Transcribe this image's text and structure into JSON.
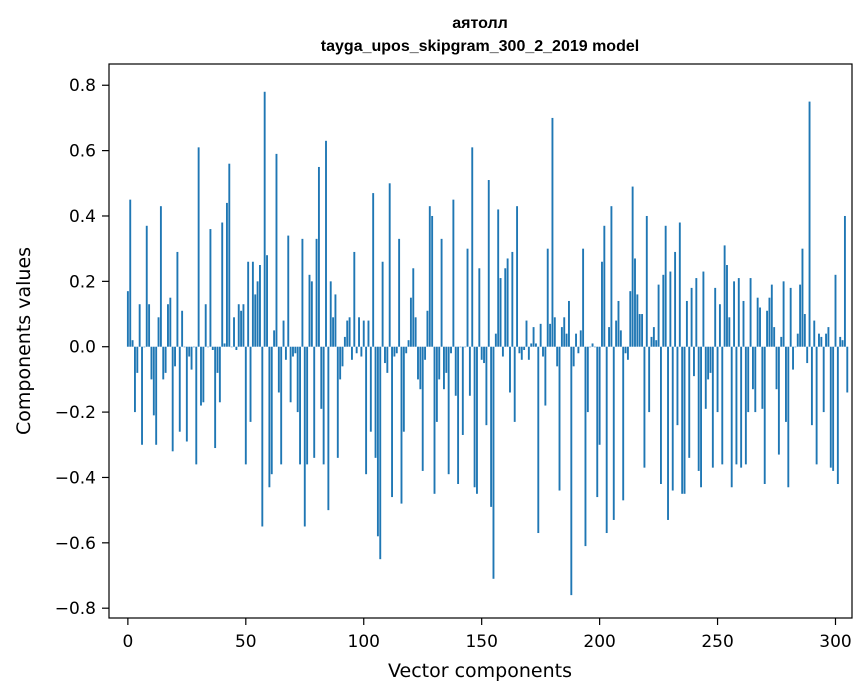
{
  "chart_data": {
    "type": "bar",
    "title_line1": "аятолл",
    "title_line2": "tayga_upos_skipgram_300_2_2019 model",
    "xlabel": "Vector components",
    "ylabel": "Components values",
    "xlim": [
      -8,
      307
    ],
    "ylim": [
      -0.83,
      0.865
    ],
    "xticks": [
      0,
      50,
      100,
      150,
      200,
      250,
      300
    ],
    "yticks": [
      -0.8,
      -0.6,
      -0.4,
      -0.2,
      0.0,
      0.2,
      0.4,
      0.6,
      0.8
    ],
    "ytick_labels": [
      "−0.8",
      "−0.6",
      "−0.4",
      "−0.2",
      "0.0",
      "0.2",
      "0.4",
      "0.6",
      "0.8"
    ],
    "grid": false,
    "bar_color": "#1f77b4",
    "values": [
      0.17,
      0.45,
      0.02,
      -0.2,
      -0.08,
      0.13,
      -0.3,
      0.0,
      0.37,
      0.13,
      -0.1,
      -0.21,
      -0.3,
      0.09,
      0.43,
      -0.1,
      -0.08,
      0.13,
      0.15,
      -0.32,
      -0.06,
      0.29,
      -0.26,
      0.11,
      0.0,
      -0.29,
      -0.03,
      -0.07,
      0.0,
      -0.36,
      0.61,
      -0.18,
      -0.17,
      0.13,
      0.0,
      0.36,
      -0.01,
      -0.31,
      -0.08,
      -0.17,
      0.38,
      0.01,
      0.44,
      0.56,
      0.0,
      0.09,
      -0.01,
      0.13,
      0.11,
      0.13,
      -0.36,
      0.26,
      -0.23,
      0.26,
      0.16,
      0.2,
      0.25,
      -0.55,
      0.78,
      0.28,
      -0.43,
      -0.39,
      0.05,
      0.59,
      -0.14,
      -0.36,
      0.08,
      -0.04,
      0.34,
      -0.17,
      -0.03,
      -0.02,
      -0.2,
      -0.36,
      0.33,
      -0.55,
      -0.36,
      0.22,
      0.2,
      -0.34,
      0.33,
      0.55,
      -0.19,
      -0.36,
      0.63,
      -0.5,
      0.2,
      0.09,
      0.16,
      -0.34,
      -0.1,
      -0.06,
      0.03,
      0.08,
      0.09,
      -0.04,
      0.29,
      -0.02,
      0.09,
      -0.03,
      0.08,
      -0.39,
      0.08,
      -0.26,
      0.47,
      -0.34,
      -0.58,
      -0.65,
      0.26,
      -0.05,
      -0.08,
      0.5,
      -0.46,
      -0.03,
      -0.02,
      0.33,
      -0.48,
      -0.26,
      -0.02,
      0.02,
      0.15,
      0.24,
      0.09,
      -0.1,
      -0.13,
      -0.38,
      -0.04,
      0.11,
      0.43,
      0.4,
      -0.45,
      -0.23,
      -0.1,
      0.33,
      -0.13,
      -0.08,
      -0.39,
      -0.02,
      0.45,
      -0.15,
      -0.42,
      0.0,
      -0.27,
      0.0,
      0.3,
      -0.15,
      0.61,
      -0.43,
      -0.45,
      0.24,
      -0.04,
      -0.05,
      -0.24,
      0.51,
      -0.49,
      -0.71,
      0.04,
      0.42,
      0.21,
      -0.03,
      0.24,
      0.27,
      -0.14,
      0.29,
      -0.23,
      0.43,
      -0.02,
      -0.04,
      -0.01,
      0.08,
      -0.04,
      0.01,
      0.06,
      0.01,
      -0.57,
      0.07,
      -0.03,
      -0.18,
      0.3,
      0.07,
      0.7,
      0.09,
      -0.06,
      -0.44,
      0.06,
      0.09,
      0.04,
      0.14,
      -0.76,
      -0.06,
      0.04,
      -0.02,
      0.05,
      0.3,
      -0.61,
      -0.2,
      0.0,
      0.01,
      0.0,
      -0.46,
      -0.3,
      0.26,
      0.37,
      -0.57,
      0.06,
      0.43,
      -0.53,
      0.08,
      0.14,
      0.05,
      -0.47,
      -0.02,
      -0.04,
      0.17,
      0.49,
      0.27,
      0.16,
      0.1,
      0.1,
      -0.37,
      0.4,
      -0.2,
      0.03,
      0.06,
      0.02,
      0.19,
      -0.42,
      0.22,
      0.37,
      -0.53,
      0.23,
      -0.44,
      0.29,
      -0.24,
      0.38,
      -0.45,
      -0.45,
      0.14,
      -0.34,
      0.18,
      -0.09,
      0.21,
      -0.38,
      -0.43,
      0.23,
      -0.19,
      -0.1,
      -0.08,
      -0.37,
      0.18,
      -0.2,
      0.13,
      -0.36,
      0.31,
      0.25,
      0.09,
      -0.43,
      0.2,
      -0.36,
      0.21,
      -0.37,
      0.14,
      -0.36,
      -0.2,
      0.21,
      -0.13,
      -0.2,
      0.15,
      0.12,
      -0.19,
      -0.42,
      0.11,
      0.15,
      0.19,
      0.06,
      -0.13,
      -0.33,
      0.03,
      0.2,
      -0.23,
      -0.43,
      0.18,
      -0.07,
      0.0,
      0.04,
      0.19,
      0.3,
      0.1,
      -0.05,
      0.75,
      -0.24,
      0.08,
      -0.36,
      0.04,
      0.03,
      -0.2,
      0.04,
      0.06,
      -0.37,
      -0.38,
      0.22,
      -0.42,
      0.03,
      0.02,
      0.4,
      -0.14
    ]
  }
}
